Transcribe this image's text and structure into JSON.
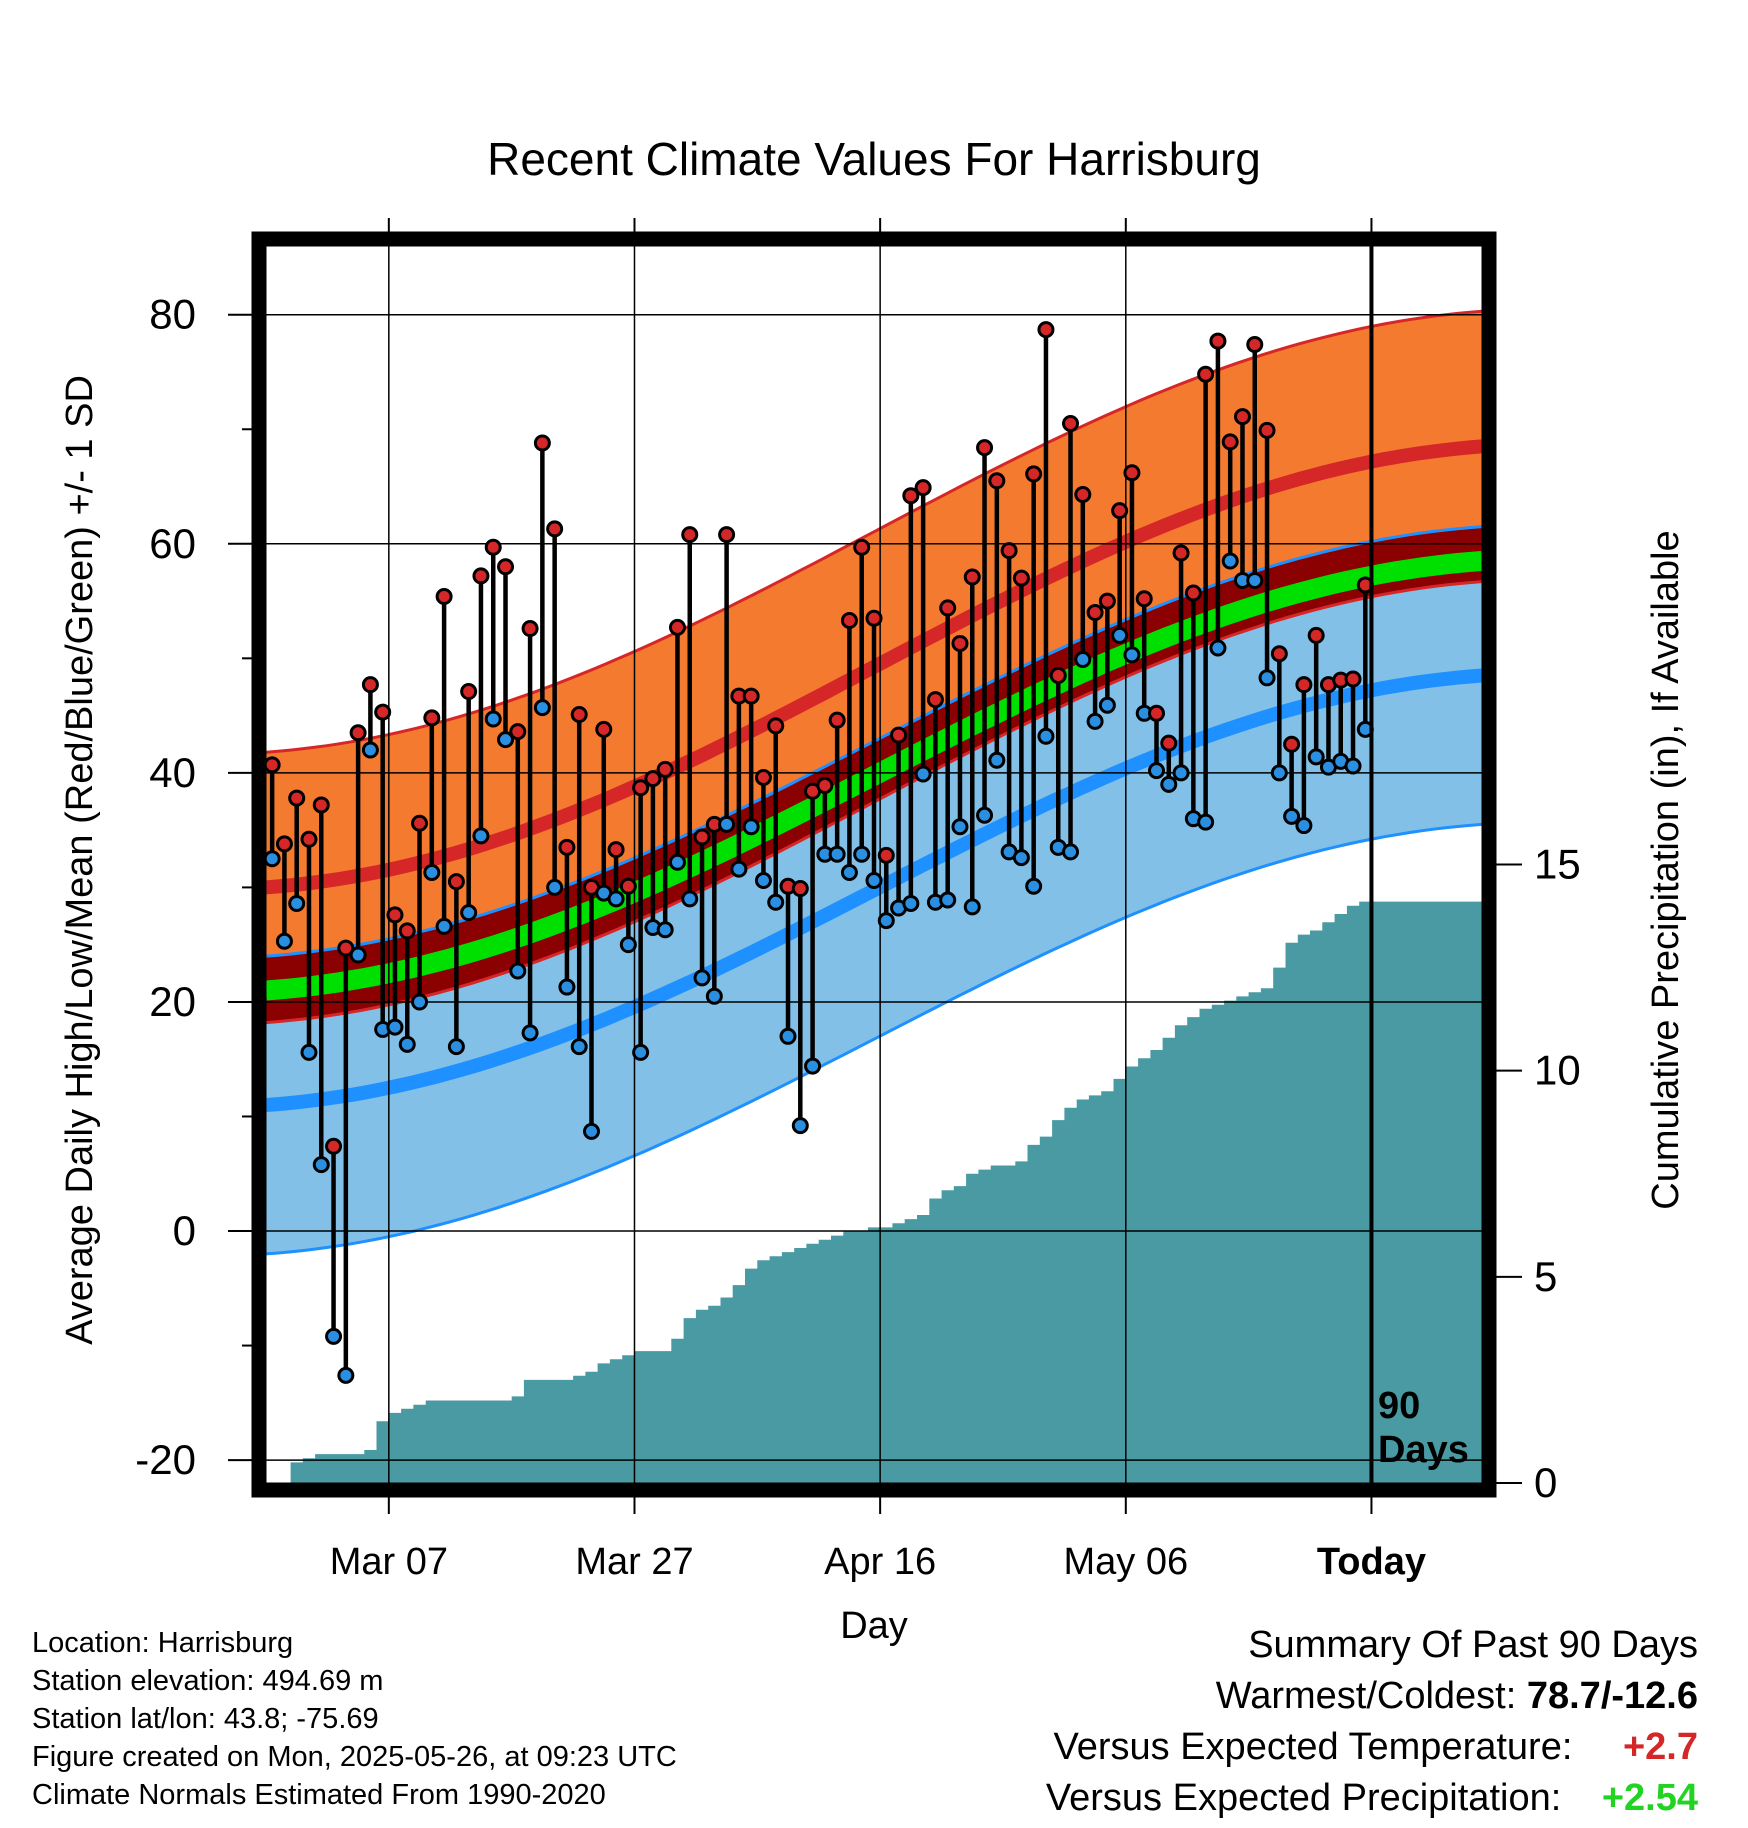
{
  "chart_data": {
    "type": "line",
    "title": "Recent Climate Values For Harrisburg",
    "xlabel": "Day",
    "ylabel_left": "Average Daily High/Low/Mean (Red/Blue/Green) +/- 1 SD",
    "ylabel_right": "Cumulative Precipitation (in), If Available",
    "x_start": "2025-02-25",
    "x_end": "2025-06-04",
    "x_ticks": [
      {
        "date": "2025-03-07",
        "label": "Mar 07"
      },
      {
        "date": "2025-03-27",
        "label": "Mar 27"
      },
      {
        "date": "2025-04-16",
        "label": "Apr 16"
      },
      {
        "date": "2025-05-06",
        "label": "May 06"
      },
      {
        "date": "2025-05-26",
        "label": "Today"
      }
    ],
    "y_left_range": [
      -22,
      86
    ],
    "y_left_ticks": [
      -20,
      0,
      20,
      40,
      60,
      80
    ],
    "y_right_range": [
      0,
      30
    ],
    "y_right_ticks": [
      0,
      5,
      10,
      15
    ],
    "today": "2025-05-26",
    "today_label": [
      "90",
      "Days"
    ],
    "grid": true,
    "normals": {
      "high_mean": {
        "start": 30.0,
        "end": 68.5
      },
      "high_sd": 11.8,
      "low_mean": {
        "start": 11.0,
        "end": 48.5
      },
      "low_sd": 13.0,
      "mean_mean": {
        "start": 21.0,
        "end": 58.5
      },
      "colors": {
        "high_band": "#f47a30",
        "high_line": "#d62728",
        "low_band": "#82c0e8",
        "low_line": "#1e90ff",
        "mean_line": "#00e000",
        "overlap": "#8b0000"
      }
    },
    "daily_start": "2025-02-25",
    "highs": [
      40.7,
      33.8,
      37.8,
      34.2,
      37.2,
      7.4,
      24.7,
      43.5,
      47.7,
      45.3,
      27.6,
      26.2,
      35.6,
      44.8,
      55.4,
      30.5,
      47.1,
      57.2,
      59.7,
      58.0,
      43.6,
      52.6,
      68.8,
      61.3,
      33.5,
      45.1,
      30.0,
      43.8,
      33.3,
      30.1,
      38.7,
      39.5,
      40.3,
      52.7,
      60.8,
      34.4,
      35.5,
      60.8,
      46.7,
      46.7,
      39.6,
      44.1,
      30.1,
      29.9,
      38.4,
      38.9,
      44.6,
      53.3,
      59.7,
      53.5,
      32.8,
      43.3,
      64.2,
      64.9,
      46.4,
      54.4,
      51.3,
      57.1,
      68.4,
      65.5,
      59.4,
      57.0,
      66.1,
      78.7,
      48.5,
      70.5,
      64.3,
      54.0,
      55.0,
      62.9,
      66.2,
      55.2,
      45.2,
      42.6,
      59.2,
      55.7,
      74.8,
      77.7,
      68.9,
      71.1,
      77.4,
      69.9,
      50.4,
      42.5,
      47.7,
      52.0,
      47.7,
      48.1,
      48.2,
      56.4
    ],
    "lows": [
      32.5,
      25.3,
      28.6,
      15.6,
      5.8,
      -9.2,
      -12.6,
      24.1,
      42.0,
      17.6,
      17.8,
      16.3,
      20.0,
      31.3,
      26.6,
      16.1,
      27.8,
      34.5,
      44.7,
      42.9,
      22.7,
      17.3,
      45.7,
      30.0,
      21.3,
      16.1,
      8.7,
      29.5,
      29.0,
      25.0,
      15.6,
      26.5,
      26.3,
      32.2,
      29.0,
      22.1,
      20.5,
      35.5,
      31.6,
      35.3,
      30.6,
      28.7,
      17.0,
      9.2,
      14.4,
      32.9,
      32.9,
      31.3,
      32.9,
      30.6,
      27.1,
      28.2,
      28.6,
      39.9,
      28.7,
      28.9,
      35.3,
      28.3,
      36.3,
      41.1,
      33.1,
      32.6,
      30.1,
      43.2,
      33.5,
      33.1,
      49.9,
      44.5,
      45.9,
      52.0,
      50.3,
      45.2,
      40.2,
      39.0,
      40.0,
      36.0,
      35.7,
      50.9,
      58.5,
      56.8,
      56.8,
      48.3,
      40.0,
      36.2,
      35.4,
      41.4,
      40.5,
      41.0,
      40.6,
      43.8
    ],
    "precip_cumulative": [
      0.0,
      0.0,
      0.5,
      0.6,
      0.7,
      0.7,
      0.7,
      0.7,
      0.8,
      1.5,
      1.7,
      1.8,
      1.9,
      2.0,
      2.0,
      2.0,
      2.0,
      2.0,
      2.0,
      2.0,
      2.1,
      2.5,
      2.5,
      2.5,
      2.5,
      2.6,
      2.7,
      2.9,
      3.0,
      3.1,
      3.2,
      3.2,
      3.2,
      3.5,
      4.0,
      4.2,
      4.3,
      4.5,
      4.8,
      5.2,
      5.4,
      5.5,
      5.6,
      5.7,
      5.8,
      5.9,
      6.0,
      6.1,
      6.1,
      6.2,
      6.2,
      6.3,
      6.4,
      6.5,
      6.9,
      7.1,
      7.2,
      7.5,
      7.6,
      7.7,
      7.7,
      7.8,
      8.2,
      8.4,
      8.8,
      9.1,
      9.3,
      9.4,
      9.5,
      9.8,
      10.1,
      10.3,
      10.5,
      10.8,
      11.1,
      11.3,
      11.5,
      11.6,
      11.7,
      11.8,
      11.9,
      12.0,
      12.5,
      13.1,
      13.3,
      13.4,
      13.6,
      13.8,
      14.0,
      14.1
    ],
    "precip_color": "#4a9aa3"
  },
  "info": {
    "location": "Location: Harrisburg",
    "elevation": "Station elevation: 494.69 m",
    "latlon": "Station lat/lon: 43.8; -75.69",
    "created": "Figure created on Mon, 2025-05-26, at 09:23 UTC",
    "normals": "Climate Normals Estimated From 1990-2020"
  },
  "summary": {
    "header": "Summary Of Past 90 Days",
    "warmest_coldest_label": "Warmest/Coldest:",
    "warmest_coldest_value": "78.7/-12.6",
    "temp_label": "Versus Expected Temperature:",
    "temp_value": "+2.7",
    "precip_label": "Versus Expected Precipitation:",
    "precip_value": "+2.54"
  }
}
